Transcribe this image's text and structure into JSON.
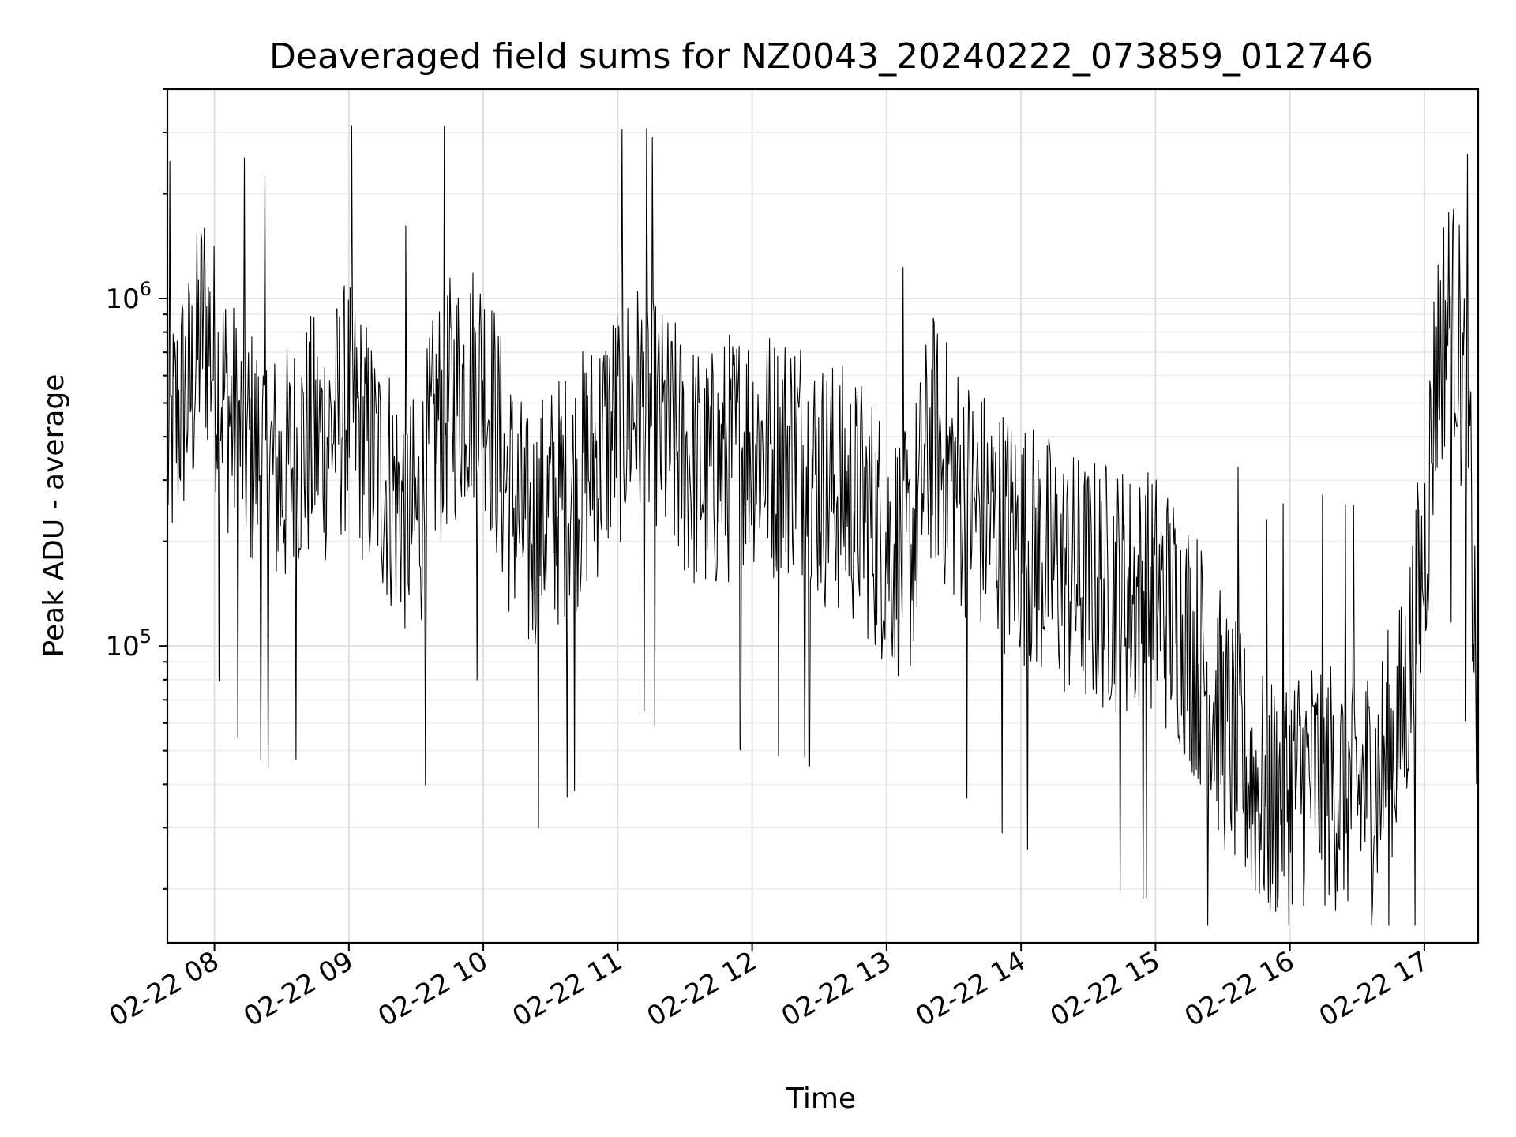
{
  "chart_data": {
    "type": "line",
    "title": "Deaveraged field sums for NZ0043_20240222_073859_012746",
    "xlabel": "Time",
    "ylabel": "Peak ADU - average",
    "y_scale": "log",
    "x_range": [
      "02-22 07:39",
      "02-22 17:24"
    ],
    "ylim": [
      14000,
      4000000
    ],
    "grid": true,
    "x_ticks": [
      "02-22 08",
      "02-22 09",
      "02-22 10",
      "02-22 11",
      "02-22 12",
      "02-22 13",
      "02-22 14",
      "02-22 15",
      "02-22 16",
      "02-22 17"
    ],
    "y_ticks": [
      {
        "value": 100000,
        "base": "10",
        "exp": "5"
      },
      {
        "value": 1000000,
        "base": "10",
        "exp": "6"
      }
    ],
    "series_color": "#000000",
    "series": [
      {
        "x": [
          "02-22 07:39",
          "02-22 07:45",
          "02-22 07:50",
          "02-22 07:55",
          "02-22 08:00",
          "02-22 08:10",
          "02-22 08:20",
          "02-22 08:30",
          "02-22 08:40",
          "02-22 08:50",
          "02-22 09:00",
          "02-22 09:10",
          "02-22 09:20",
          "02-22 09:30",
          "02-22 09:40",
          "02-22 09:50",
          "02-22 10:00",
          "02-22 10:10",
          "02-22 10:20",
          "02-22 10:30",
          "02-22 10:40",
          "02-22 10:50",
          "02-22 11:00",
          "02-22 11:10",
          "02-22 11:20",
          "02-22 11:30",
          "02-22 11:40",
          "02-22 11:50",
          "02-22 12:00",
          "02-22 12:10",
          "02-22 12:20",
          "02-22 12:30",
          "02-22 12:40",
          "02-22 12:50",
          "02-22 13:00",
          "02-22 13:10",
          "02-22 13:20",
          "02-22 13:30",
          "02-22 13:40",
          "02-22 13:50",
          "02-22 14:00",
          "02-22 14:10",
          "02-22 14:20",
          "02-22 14:30",
          "02-22 14:40",
          "02-22 14:50",
          "02-22 15:00",
          "02-22 15:10",
          "02-22 15:20",
          "02-22 15:30",
          "02-22 15:40",
          "02-22 15:50",
          "02-22 16:00",
          "02-22 16:10",
          "02-22 16:20",
          "02-22 16:30",
          "02-22 16:40",
          "02-22 16:50",
          "02-22 17:00",
          "02-22 17:05",
          "02-22 17:10",
          "02-22 17:15",
          "02-22 17:20",
          "02-22 17:24"
        ],
        "values": [
          350000,
          500000,
          550000,
          900000,
          650000,
          400000,
          350000,
          300000,
          380000,
          400000,
          500000,
          350000,
          280000,
          220000,
          450000,
          550000,
          600000,
          300000,
          200000,
          250000,
          280000,
          350000,
          450000,
          500000,
          400000,
          350000,
          300000,
          350000,
          400000,
          350000,
          380000,
          300000,
          280000,
          250000,
          200000,
          180000,
          400000,
          300000,
          250000,
          220000,
          200000,
          180000,
          160000,
          150000,
          150000,
          140000,
          140000,
          120000,
          90000,
          60000,
          45000,
          35000,
          40000,
          42000,
          40000,
          38000,
          42000,
          60000,
          180000,
          600000,
          900000,
          800000,
          350000,
          50000
        ]
      }
    ]
  }
}
